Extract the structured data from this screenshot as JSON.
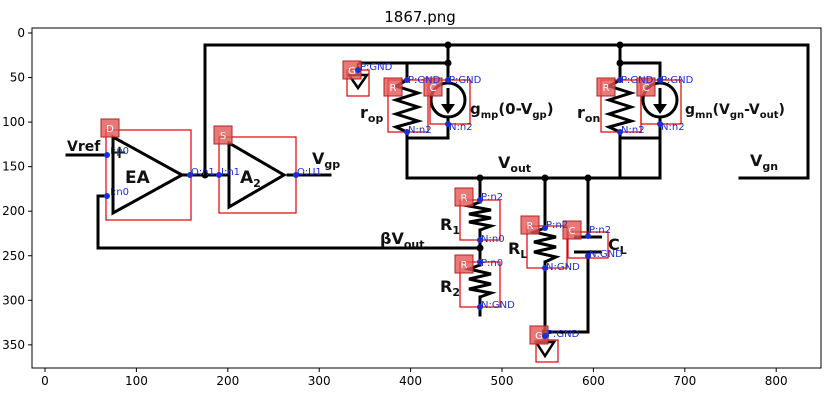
{
  "figure": {
    "title": "1867.png",
    "x_ticks": [
      "0",
      "100",
      "200",
      "300",
      "400",
      "500",
      "600",
      "700",
      "800"
    ],
    "y_ticks": [
      "0",
      "50",
      "100",
      "150",
      "200",
      "250",
      "300",
      "350"
    ]
  },
  "circuit": {
    "labels": {
      "vref": "Vref",
      "plus": "+",
      "ea": "EA",
      "a2_main": "A",
      "a2_sub": "2",
      "vgp_main": "V",
      "vgp_sub": "gp",
      "rop_main": "r",
      "rop_sub": "op",
      "gmp_main": "g",
      "gmp_sub": "mp",
      "gmp_rest": "(0-V",
      "gmp_sub2": "gp",
      "gmp_close": ")",
      "ron_main": "r",
      "ron_sub": "on",
      "gmn_main": "g",
      "gmn_sub": "mn",
      "gmn_rest": "(V",
      "gmn_sub2": "gn",
      "gmn_rest2": "-V",
      "gmn_sub3": "out",
      "gmn_close": ")",
      "vout_main": "V",
      "vout_sub": "out",
      "vgn_main": "V",
      "vgn_sub": "gn",
      "r1_main": "R",
      "r1_sub": "1",
      "r2_main": "R",
      "r2_sub": "2",
      "bvout_main": "βV",
      "bvout_sub": "out",
      "rl_main": "R",
      "rl_sub": "L",
      "cl_main": "C",
      "cl_sub": "L"
    },
    "tags": {
      "ea": "D",
      "a2": "S",
      "gnd_top": "G",
      "rop": "R",
      "gmp": "C",
      "ron": "R",
      "gmn": "C",
      "r1": "R",
      "r2": "R",
      "rl": "R",
      "cl": "C",
      "gnd_bottom": "G"
    },
    "pins": {
      "ea_p": "I:p0",
      "ea_n": "I:n0",
      "ea_out": "O:n1",
      "a2_in": "I:n1",
      "a2_out": "O:U1",
      "gnd_top": "P:GND",
      "rop_p": "P:GND",
      "rop_n": "N:n2",
      "gmp_p": "P:GND",
      "gmp_n": "N:n2",
      "ron_p": "P:GND",
      "ron_n": "N:n2",
      "gmn_p": "P:GND",
      "gmn_n": "N:n2",
      "r1_p": "P:n2",
      "r1_n": "N:n0",
      "r2_p": "P:n0",
      "r2_n": "N:GND",
      "rl_p": "P:n2",
      "rl_n": "N:GND",
      "cl_p": "P:n2",
      "cl_n": "N:GND",
      "gnd_bottom": "P:GND"
    }
  }
}
